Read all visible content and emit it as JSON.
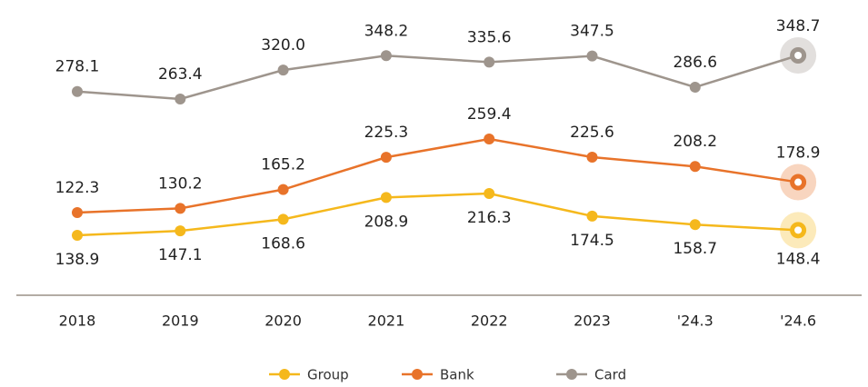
{
  "chart_data": {
    "type": "line",
    "categories": [
      "2018",
      "2019",
      "2020",
      "2021",
      "2022",
      "2023",
      "'24.3",
      "'24.6"
    ],
    "series": [
      {
        "name": "Group",
        "color": "#f5b81c",
        "values": [
          138.9,
          147.1,
          168.6,
          208.9,
          216.3,
          174.5,
          158.7,
          148.4
        ],
        "value_labels": [
          "138.9",
          "147.1",
          "168.6",
          "208.9",
          "216.3",
          "174.5",
          "158.7",
          "148.4"
        ]
      },
      {
        "name": "Bank",
        "color": "#e8732a",
        "values": [
          122.3,
          130.2,
          165.2,
          225.3,
          259.4,
          225.6,
          208.2,
          178.9
        ],
        "value_labels": [
          "122.3",
          "130.2",
          "165.2",
          "225.3",
          "259.4",
          "225.6",
          "208.2",
          "178.9"
        ]
      },
      {
        "name": "Card",
        "color": "#9e958d",
        "values": [
          278.1,
          263.4,
          320.0,
          348.2,
          335.6,
          347.5,
          286.6,
          348.7
        ],
        "value_labels": [
          "278.1",
          "263.4",
          "320.0",
          "348.2",
          "335.6",
          "347.5",
          "286.6",
          "348.7"
        ]
      }
    ]
  }
}
